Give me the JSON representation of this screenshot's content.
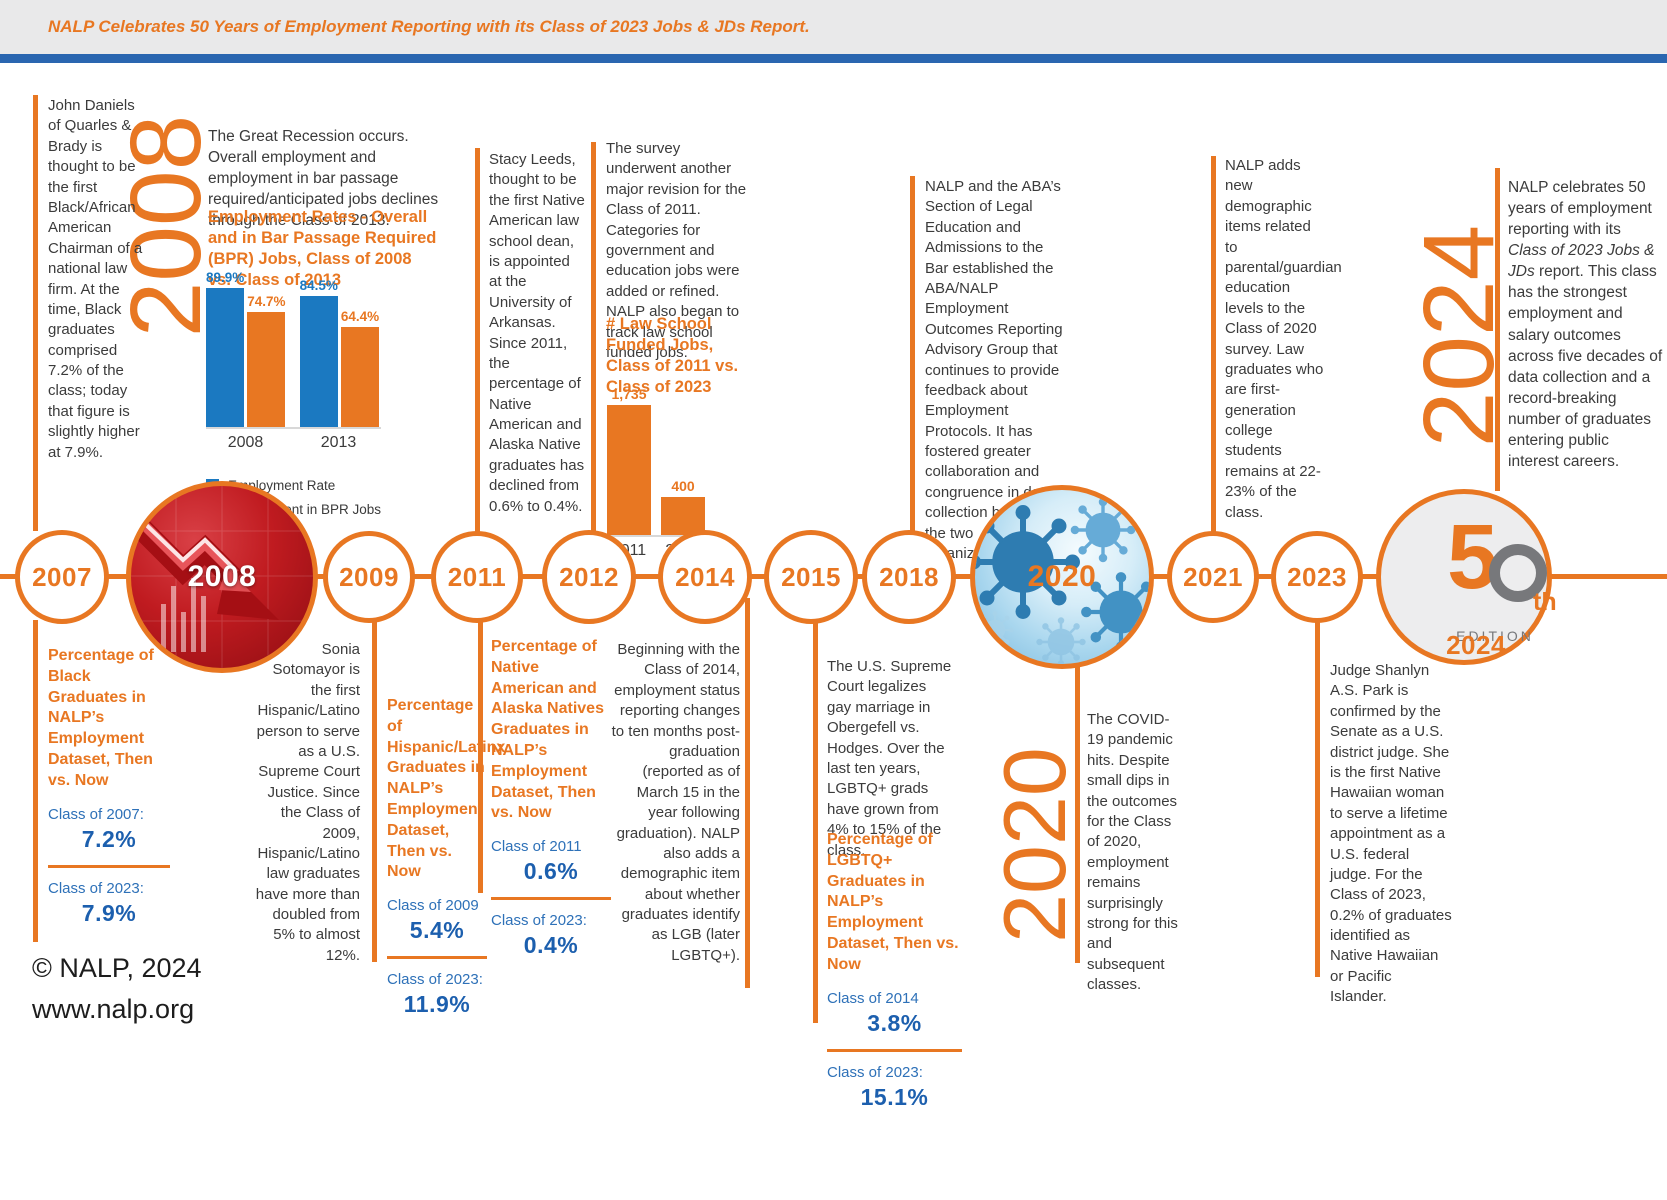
{
  "banner": {
    "text": "NALP Celebrates 50 Years of Employment Reporting with its Class of 2023 Jobs & JDs Report."
  },
  "timeline": {
    "years": [
      "2007",
      "2008",
      "2009",
      "2011",
      "2012",
      "2014",
      "2015",
      "2018",
      "2020",
      "2021",
      "2023",
      "2024"
    ]
  },
  "big_years": {
    "y2008": "2008",
    "y2020": "2020",
    "y2024": "2024"
  },
  "edition_badge": {
    "five": "5",
    "zero": "0",
    "suffix": "th",
    "label": "EDITION"
  },
  "events": {
    "daniels": "John Daniels of Quarles & Brady is thought to be the first Black/African American Chairman of a national law firm. At the time, Black graduates comprised 7.2% of the class; today that figure is slightly higher at 7.9%.",
    "recession": "The Great Recession occurs. Overall employment and employment in bar passage required/anticipated jobs declines through the Class of 2013.",
    "leeds": "Stacy Leeds, thought to be the first Native American law school dean, is appointed at the University of Arkansas. Since 2011, the percentage of Native American and Alaska Native graduates has declined from 0.6% to 0.4%.",
    "survey": "The survey underwent another major revision for the Class of 2011. Categories for government and education jobs were added or refined. NALP also began to track law school funded jobs.",
    "aba": "NALP and the ABA’s Section of Legal Education and Admissions to the Bar established the ABA/NALP Employment Outcomes Reporting Advisory Group that continues to provide feedback about Employment Protocols. It has fostered greater collaboration and congruence in data collection between the two organizations.",
    "demographics": "NALP adds new demographic items related to parental/guardian education levels to the Class of 2020 survey. Law graduates who are first-generation college students remains at 22-23% of the class.",
    "anniversary": {
      "before": "NALP celebrates 50 years of employment reporting with its ",
      "italic": "Class of 2023 Jobs & JDs",
      "after": " report. This class has the strongest employment and salary outcomes across five decades of data collection and a record-breaking number of graduates entering public interest careers."
    },
    "sotomayor": "Sonia Sotomayor is the first Hispanic/Latino person to serve as a U.S. Supreme Court Justice. Since the Class of 2009, Hispanic/Latino law graduates have more than doubled from 5% to almost 12%.",
    "reporting2014": "Beginning with the Class of 2014, employment status reporting changes to ten months post-graduation (reported as of March 15 in the year following graduation). NALP also adds a demographic item about whether graduates identify as LGB (later LGBTQ+).",
    "marriage": "The U.S. Supreme Court legalizes gay marriage in Obergefell vs. Hodges. Over the last ten years, LGBTQ+ grads have grown from 4% to 15% of the class.",
    "covid": "The COVID-19 pandemic hits. Despite small dips in the outcomes for the Class of 2020, employment remains surprisingly strong for this and subsequent classes.",
    "park": "Judge Shanlyn A.S. Park is confirmed by the Senate as a U.S. district judge. She is the first Native Hawaiian woman to serve a lifetime appointment as a U.S. federal judge. For the Class of 2023, 0.2% of graduates identified as Native Hawaiian or Pacific Islander."
  },
  "stats": {
    "black": {
      "heading": "Percentage of Black Graduates in NALP’s Employment Dataset, Then vs. Now",
      "then_label": "Class of 2007:",
      "then_value": "7.2%",
      "now_label": "Class of 2023:",
      "now_value": "7.9%"
    },
    "hispanic": {
      "heading": "Percentage of Hispanic/Latinx Graduates in NALP’s Employment Dataset, Then vs. Now",
      "then_label": "Class of 2009",
      "then_value": "5.4%",
      "now_label": "Class of 2023:",
      "now_value": "11.9%"
    },
    "native": {
      "heading": "Percentage of Native American and Alaska Natives Graduates in NALP’s Employment Dataset, Then vs. Now",
      "then_label": "Class of 2011",
      "then_value": "0.6%",
      "now_label": "Class of 2023:",
      "now_value": "0.4%"
    },
    "lgbtq": {
      "heading": "Percentage of LGBTQ+ Graduates in NALP’s Employment Dataset, Then vs. Now",
      "then_label": "Class of 2014",
      "then_value": "3.8%",
      "now_label": "Class of 2023:",
      "now_value": "15.1%"
    }
  },
  "chart_data": [
    {
      "type": "bar",
      "title": "Employment Rates - Overall and in Bar Passage Required (BPR) Jobs, Class of 2008 vs. Class of 2013",
      "categories": [
        "2008",
        "2013"
      ],
      "series": [
        {
          "name": "Employment Rate",
          "values": [
            89.9,
            84.5
          ],
          "color": "#1b79c1"
        },
        {
          "name": "Employment in BPR Jobs",
          "values": [
            74.7,
            64.4
          ],
          "color": "#e87722"
        }
      ],
      "value_suffix": "%",
      "legend_position": "bottom",
      "ylim": [
        0,
        100
      ],
      "grid": false
    },
    {
      "type": "bar",
      "title": "# Law School Funded Jobs, Class of 2011 vs. Class of 2023",
      "categories": [
        "2011",
        "2023"
      ],
      "values": [
        1735,
        400
      ],
      "value_labels": [
        "1,735",
        "400"
      ],
      "color": "#e87722",
      "grid": false
    }
  ],
  "footer": {
    "copyright": "© NALP, 2024",
    "website": "www.nalp.org"
  }
}
